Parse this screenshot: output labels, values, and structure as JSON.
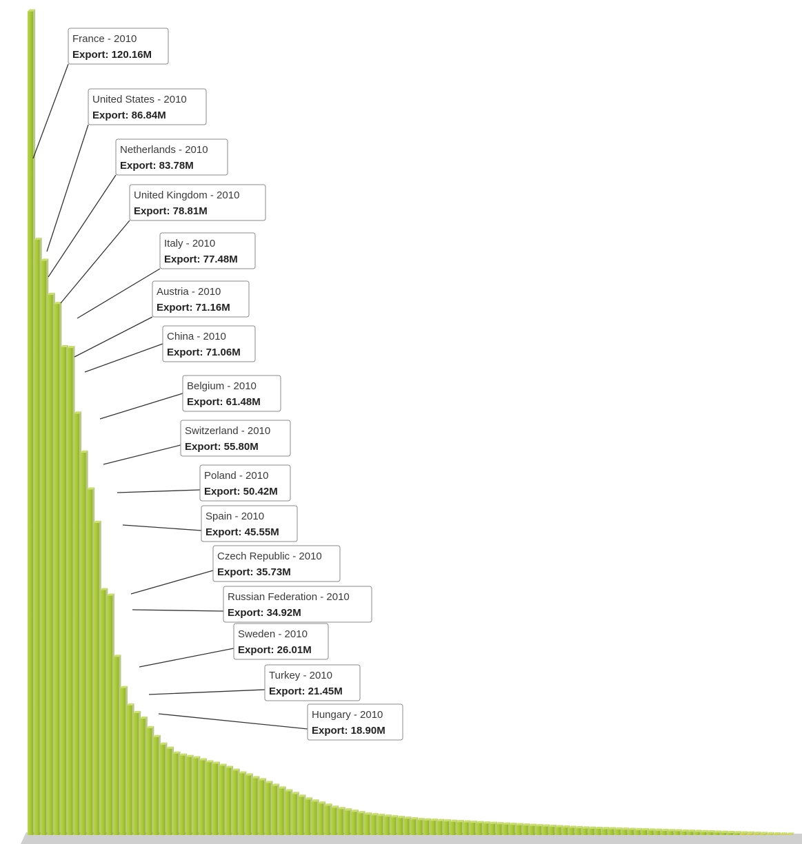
{
  "chart_data": {
    "type": "bar",
    "title": "",
    "xlabel": "",
    "ylabel": "",
    "value_prefix": "Export: ",
    "year_suffix": " - 2010",
    "colors": {
      "bar_green": "#a7c838",
      "bar_yellow": "#f0c030",
      "floor": "#c9c9c9",
      "bar_side": "#7f9a27"
    },
    "labeled": [
      {
        "country": "France",
        "year": "2010",
        "value": 120.16,
        "text": "Export: 120.16M"
      },
      {
        "country": "United States",
        "year": "2010",
        "value": 86.84,
        "text": "Export: 86.84M"
      },
      {
        "country": "Netherlands",
        "year": "2010",
        "value": 83.78,
        "text": "Export: 83.78M"
      },
      {
        "country": "United Kingdom",
        "year": "2010",
        "value": 78.81,
        "text": "Export: 78.81M"
      },
      {
        "country": "Italy",
        "year": "2010",
        "value": 77.48,
        "text": "Export: 77.48M"
      },
      {
        "country": "Austria",
        "year": "2010",
        "value": 71.16,
        "text": "Export: 71.16M"
      },
      {
        "country": "China",
        "year": "2010",
        "value": 71.06,
        "text": "Export: 71.06M"
      },
      {
        "country": "Belgium",
        "year": "2010",
        "value": 61.48,
        "text": "Export: 61.48M"
      },
      {
        "country": "Switzerland",
        "year": "2010",
        "value": 55.8,
        "text": "Export: 55.80M"
      },
      {
        "country": "Poland",
        "year": "2010",
        "value": 50.42,
        "text": "Export: 50.42M"
      },
      {
        "country": "Spain",
        "year": "2010",
        "value": 45.55,
        "text": "Export: 45.55M"
      },
      {
        "country": "Czech Republic",
        "year": "2010",
        "value": 35.73,
        "text": "Export: 35.73M"
      },
      {
        "country": "Russian Federation",
        "year": "2010",
        "value": 34.92,
        "text": "Export: 34.92M"
      },
      {
        "country": "Sweden",
        "year": "2010",
        "value": 26.01,
        "text": "Export: 26.01M"
      },
      {
        "country": "Turkey",
        "year": "2010",
        "value": 21.45,
        "text": "Export: 21.45M"
      },
      {
        "country": "Hungary",
        "year": "2010",
        "value": 18.9,
        "text": "Export: 18.90M"
      }
    ],
    "unlabeled_values": [
      17.8,
      17.0,
      15.6,
      14.3,
      13.2,
      12.6,
      11.9,
      11.6,
      11.4,
      11.2,
      10.9,
      10.6,
      10.4,
      10.1,
      9.8,
      9.4,
      9.0,
      8.7,
      8.3,
      8.0,
      7.6,
      7.2,
      6.8,
      6.4,
      6.0,
      5.6,
      5.2,
      4.9,
      4.6,
      4.3,
      4.0,
      3.8,
      3.6,
      3.4,
      3.2,
      3.0,
      2.9,
      2.8,
      2.7,
      2.6,
      2.5,
      2.4,
      2.3,
      2.2,
      2.15,
      2.1,
      2.05,
      2.0,
      1.95,
      1.9,
      1.85,
      1.8,
      1.75,
      1.7,
      1.65,
      1.6,
      1.55,
      1.5,
      1.45,
      1.4,
      1.35,
      1.3,
      1.25,
      1.2,
      1.15,
      1.1,
      1.05,
      1.0,
      0.97,
      0.94,
      0.91,
      0.88,
      0.85,
      0.82,
      0.79,
      0.76,
      0.73,
      0.7,
      0.67,
      0.64,
      0.61,
      0.58,
      0.55,
      0.52,
      0.49,
      0.46,
      0.43,
      0.4,
      0.37,
      0.34,
      0.31,
      0.28,
      0.25,
      0.22,
      0.19,
      0.16,
      0.13,
      0.1,
      0.08,
      0.06
    ],
    "ylim": [
      0,
      125
    ],
    "grid": false,
    "legend": "none"
  }
}
